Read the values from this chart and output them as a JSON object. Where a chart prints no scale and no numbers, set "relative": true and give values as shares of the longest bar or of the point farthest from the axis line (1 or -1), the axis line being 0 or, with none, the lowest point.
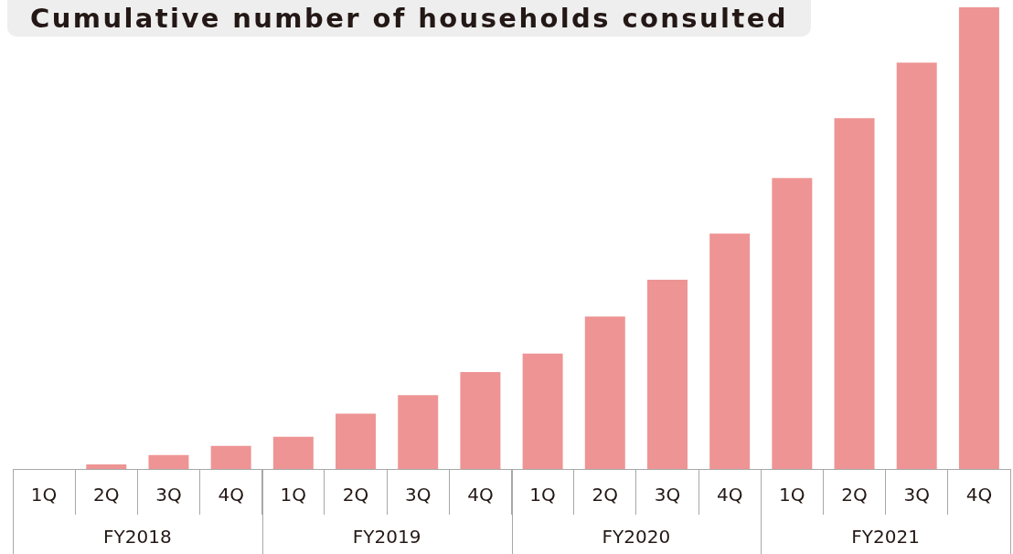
{
  "chart_data": {
    "type": "bar",
    "title": "Cumulative number of households consulted",
    "categories": [
      "1Q",
      "2Q",
      "3Q",
      "4Q",
      "1Q",
      "2Q",
      "3Q",
      "4Q",
      "1Q",
      "2Q",
      "3Q",
      "4Q",
      "1Q",
      "2Q",
      "3Q",
      "4Q"
    ],
    "values": [
      0,
      0.01,
      0.03,
      0.05,
      0.07,
      0.12,
      0.16,
      0.21,
      0.25,
      0.33,
      0.41,
      0.51,
      0.63,
      0.76,
      0.88,
      1
    ],
    "color": "#ee9494",
    "relative": true,
    "annotations": [
      "FY2018",
      "FY2019",
      "FY2020",
      "FY2021"
    ]
  }
}
